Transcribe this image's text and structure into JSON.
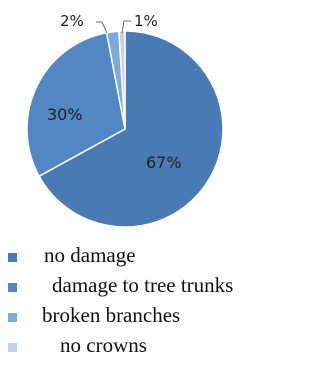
{
  "chart_data": {
    "type": "pie",
    "title": "",
    "slices": [
      {
        "label": "no damage",
        "value": 67,
        "display": "67%",
        "color": "#4a7ab4"
      },
      {
        "label": "damage to tree trunks",
        "value": 30,
        "display": "30%",
        "color": "#5287c4"
      },
      {
        "label": "broken branches",
        "value": 2,
        "display": "2%",
        "color": "#7fa9dd"
      },
      {
        "label": "no crowns",
        "value": 1,
        "display": "1%",
        "color": "#c0d4ee"
      }
    ],
    "legend_position": "bottom"
  }
}
